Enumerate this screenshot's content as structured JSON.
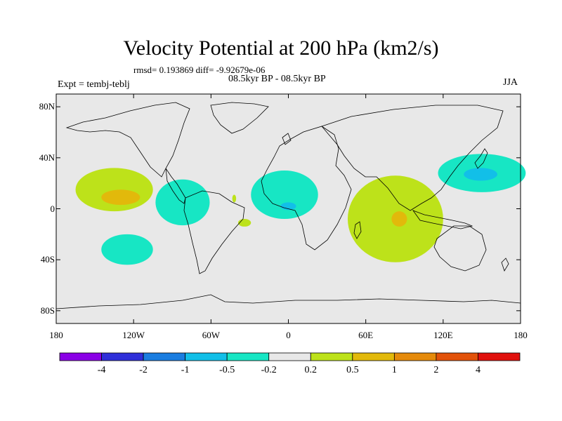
{
  "header": {
    "title": "Velocity Potential at 200 hPa (km2/s)",
    "stats": "rmsd= 0.193869 diff= -9.92679e-06",
    "period": "08.5kyr BP - 08.5kyr BP",
    "experiment": "Expt = tembj-teblj",
    "season": "JJA"
  },
  "chart_data": {
    "type": "heatmap",
    "title": "Velocity Potential at 200 hPa (km2/s)",
    "projection": "cylindrical equidistant",
    "xlim": [
      -180,
      180
    ],
    "ylim": [
      -90,
      90
    ],
    "xticks": [
      {
        "value": -180,
        "label": "180"
      },
      {
        "value": -120,
        "label": "120W"
      },
      {
        "value": -60,
        "label": "60W"
      },
      {
        "value": 0,
        "label": "0"
      },
      {
        "value": 60,
        "label": "60E"
      },
      {
        "value": 120,
        "label": "120E"
      },
      {
        "value": 180,
        "label": "180"
      }
    ],
    "yticks": [
      {
        "value": 80,
        "label": "80N"
      },
      {
        "value": 40,
        "label": "40N"
      },
      {
        "value": 0,
        "label": "0"
      },
      {
        "value": -40,
        "label": "40S"
      },
      {
        "value": -80,
        "label": "80S"
      }
    ],
    "contour_levels": [
      -4,
      -2,
      -1,
      -0.5,
      -0.2,
      0.2,
      0.5,
      1,
      2,
      4
    ],
    "level_labels": [
      "-4",
      "-2",
      "-1",
      "-0.5",
      "-0.2",
      "0.2",
      "0.5",
      "1",
      "2",
      "4"
    ],
    "colors": [
      "#8a00e6",
      "#2f2fd9",
      "#1a7de0",
      "#12bfe8",
      "#17e6c4",
      "#e8e8e8",
      "#bde21a",
      "#e2b90b",
      "#e58a0b",
      "#e2520a",
      "#e0100d"
    ],
    "regions": [
      {
        "name": "east-pacific-north",
        "category": 6,
        "center": [
          -135,
          15
        ],
        "radii": [
          30,
          17
        ]
      },
      {
        "name": "east-pacific-north-core",
        "category": 7,
        "center": [
          -130,
          9
        ],
        "radii": [
          15,
          6
        ]
      },
      {
        "name": "east-pacific-south",
        "category": 4,
        "center": [
          -125,
          -32
        ],
        "radii": [
          20,
          12
        ]
      },
      {
        "name": "caribbean",
        "category": 4,
        "center": [
          -82,
          5
        ],
        "radii": [
          21,
          18
        ]
      },
      {
        "name": "west-africa",
        "category": 4,
        "center": [
          -3,
          11
        ],
        "radii": [
          26,
          19
        ]
      },
      {
        "name": "west-africa-core",
        "category": 3,
        "center": [
          0,
          2
        ],
        "radii": [
          6,
          3
        ]
      },
      {
        "name": "atlantic-small-south",
        "category": 6,
        "center": [
          -34,
          -11
        ],
        "radii": [
          5,
          3
        ]
      },
      {
        "name": "atlantic-small-north",
        "category": 6,
        "center": [
          -42,
          8
        ],
        "radii": [
          1.5,
          3
        ]
      },
      {
        "name": "indian-ocean",
        "category": 6,
        "center": [
          83,
          -8
        ],
        "radii": [
          37,
          34
        ]
      },
      {
        "name": "indian-ocean-core",
        "category": 7,
        "center": [
          86,
          -8
        ],
        "radii": [
          6,
          6
        ]
      },
      {
        "name": "western-pacific",
        "category": 4,
        "center": [
          150,
          28
        ],
        "radii": [
          34,
          15
        ]
      },
      {
        "name": "western-pacific-core",
        "category": 3,
        "center": [
          149,
          27
        ],
        "radii": [
          13,
          5
        ]
      }
    ]
  }
}
